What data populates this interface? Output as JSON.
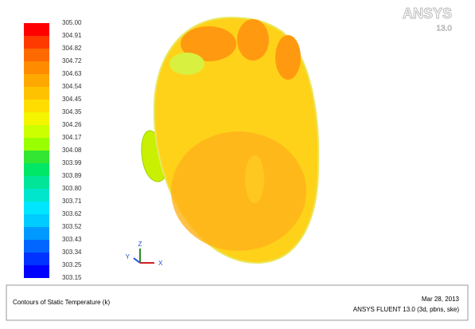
{
  "logo": {
    "brand": "ANSYS",
    "version": "13.0"
  },
  "colorbar": {
    "labels": [
      "305.00",
      "304.91",
      "304.82",
      "304.72",
      "304.63",
      "304.54",
      "304.45",
      "304.35",
      "304.26",
      "304.17",
      "304.08",
      "303.99",
      "303.89",
      "303.80",
      "303.71",
      "303.62",
      "303.52",
      "303.43",
      "303.34",
      "303.25",
      "303.15"
    ],
    "colors": [
      "#ff0000",
      "#ff3a00",
      "#ff6a00",
      "#ff8c00",
      "#ffa800",
      "#ffc200",
      "#ffdd00",
      "#f5f500",
      "#ccff00",
      "#99ff00",
      "#33e633",
      "#00e666",
      "#00e699",
      "#00e6cc",
      "#00e6ff",
      "#00ccff",
      "#0099ff",
      "#0066ff",
      "#0033ff",
      "#0000ff"
    ]
  },
  "triad": {
    "x": "X",
    "y": "Y",
    "z": "Z"
  },
  "footer": {
    "title": "Contours of Static Temperature (k)",
    "date": "Mar 28, 2013",
    "solver": "ANSYS FLUENT 13.0 (3d, pbns, ske)"
  }
}
